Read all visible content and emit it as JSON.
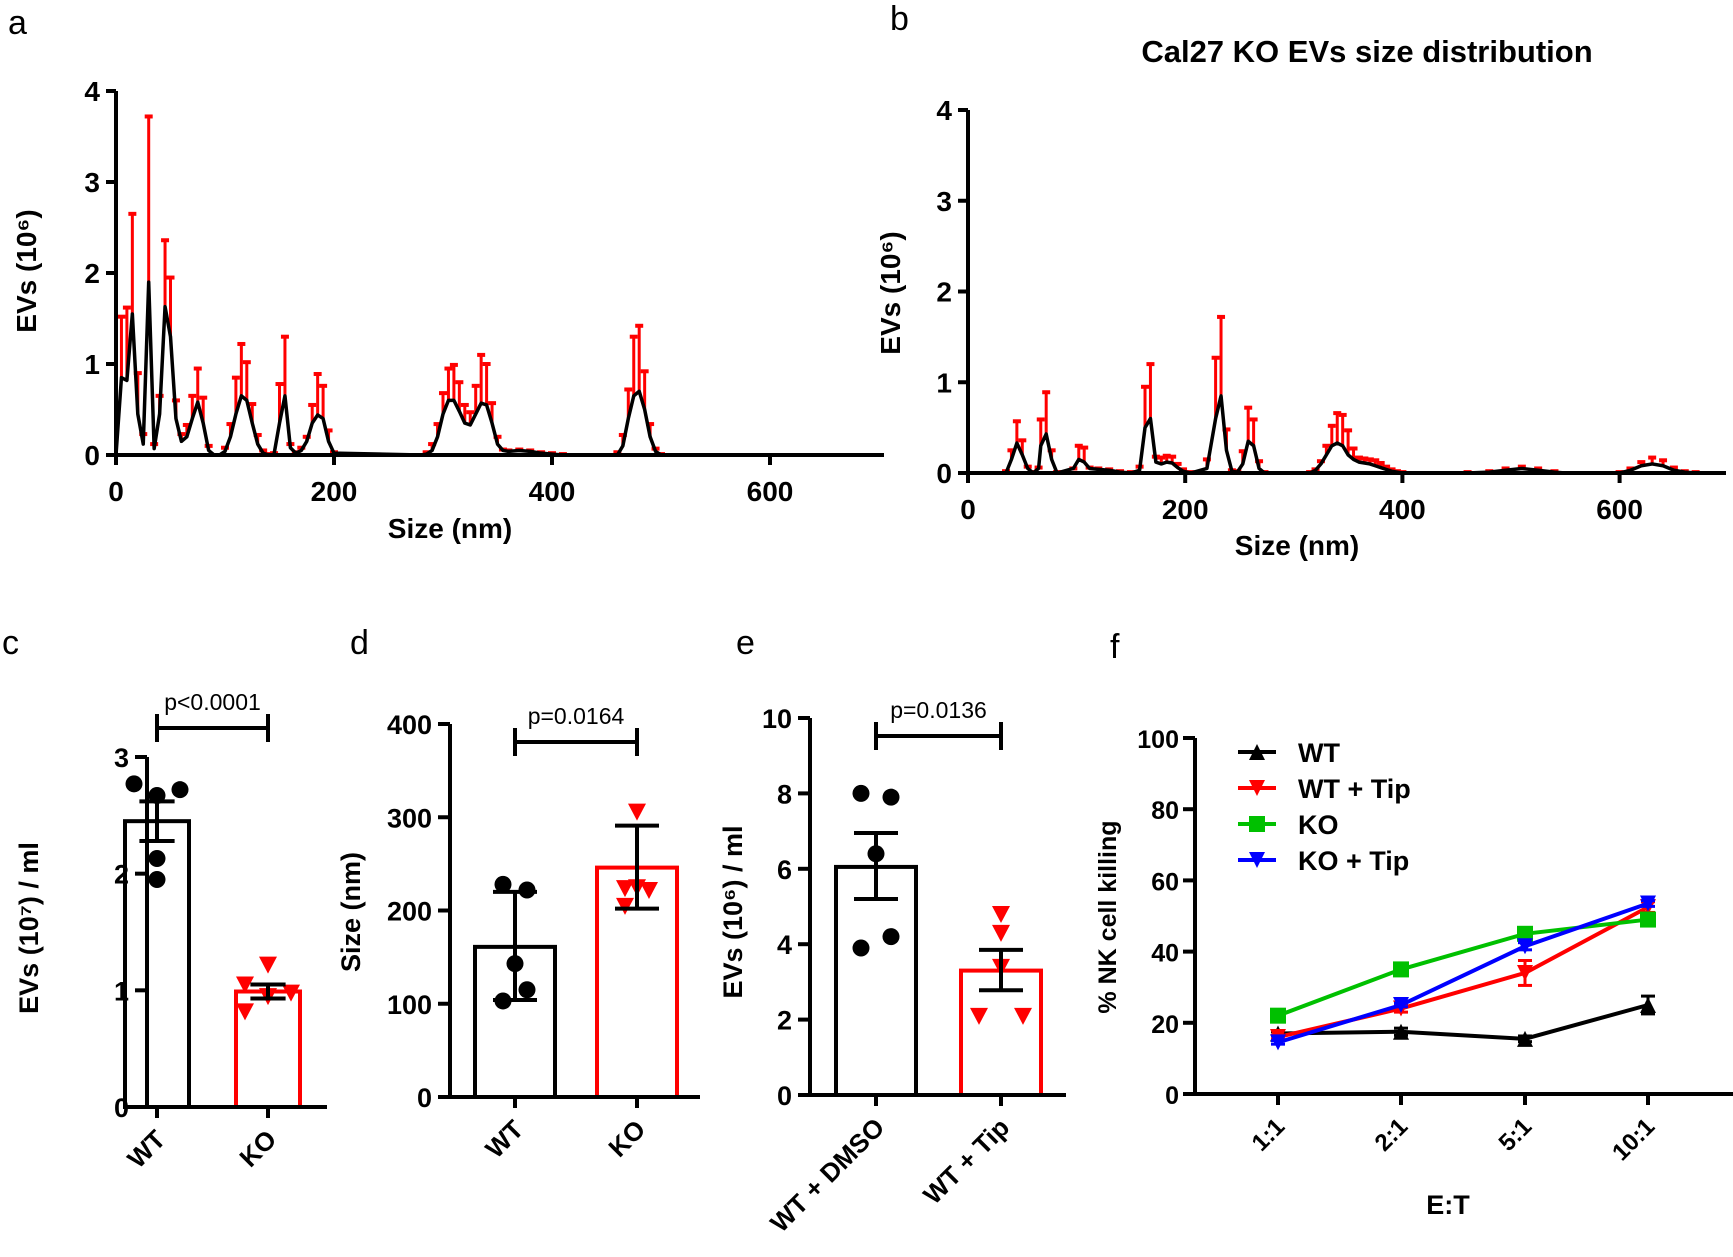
{
  "chart_data": [
    {
      "panel": "a",
      "type": "line",
      "title": "",
      "xlabel": "Size (nm)",
      "ylabel": "EVs (10⁶)",
      "xlim": [
        0,
        700
      ],
      "ylim": [
        0,
        4
      ],
      "xticks": [
        "0",
        "200",
        "400",
        "600"
      ],
      "yticks": [
        "0",
        "1",
        "2",
        "3",
        "4"
      ],
      "colors": {
        "line": "#000000",
        "error": "#ff0000"
      },
      "points_format": [
        "size_nm",
        "mean",
        "upper_error"
      ],
      "points": [
        [
          0,
          0,
          0
        ],
        [
          5,
          0.85,
          1.52
        ],
        [
          10,
          0.82,
          1.62
        ],
        [
          15,
          1.55,
          2.65
        ],
        [
          20,
          0.45,
          0.9
        ],
        [
          25,
          0.12,
          0.23
        ],
        [
          30,
          1.9,
          3.72
        ],
        [
          35,
          0.07,
          0.12
        ],
        [
          40,
          0.45,
          0.65
        ],
        [
          45,
          1.63,
          2.36
        ],
        [
          50,
          1.3,
          1.95
        ],
        [
          55,
          0.4,
          0.6
        ],
        [
          60,
          0.15,
          0.23
        ],
        [
          65,
          0.2,
          0.33
        ],
        [
          70,
          0.4,
          0.65
        ],
        [
          75,
          0.58,
          0.95
        ],
        [
          80,
          0.35,
          0.63
        ],
        [
          85,
          0.05,
          0.1
        ],
        [
          90,
          0,
          0
        ],
        [
          95,
          0,
          0
        ],
        [
          100,
          0.04,
          0.08
        ],
        [
          105,
          0.2,
          0.34
        ],
        [
          110,
          0.45,
          0.85
        ],
        [
          115,
          0.65,
          1.22
        ],
        [
          120,
          0.6,
          1.02
        ],
        [
          125,
          0.35,
          0.56
        ],
        [
          130,
          0.12,
          0.22
        ],
        [
          135,
          0.02,
          0.05
        ],
        [
          140,
          0,
          0.01
        ],
        [
          145,
          0.01,
          0.02
        ],
        [
          150,
          0.35,
          0.78
        ],
        [
          155,
          0.65,
          1.3
        ],
        [
          160,
          0.08,
          0.12
        ],
        [
          165,
          0.02,
          0.03
        ],
        [
          170,
          0.05,
          0.08
        ],
        [
          175,
          0.15,
          0.2
        ],
        [
          180,
          0.35,
          0.55
        ],
        [
          185,
          0.44,
          0.89
        ],
        [
          190,
          0.4,
          0.76
        ],
        [
          195,
          0.15,
          0.27
        ],
        [
          200,
          0.02,
          0.03
        ],
        [
          280,
          0,
          0
        ],
        [
          285,
          0.01,
          0.03
        ],
        [
          290,
          0.05,
          0.12
        ],
        [
          295,
          0.2,
          0.34
        ],
        [
          300,
          0.45,
          0.68
        ],
        [
          305,
          0.6,
          0.95
        ],
        [
          310,
          0.6,
          0.99
        ],
        [
          315,
          0.48,
          0.8
        ],
        [
          320,
          0.35,
          0.55
        ],
        [
          325,
          0.33,
          0.47
        ],
        [
          330,
          0.45,
          0.76
        ],
        [
          335,
          0.57,
          1.1
        ],
        [
          340,
          0.55,
          1.0
        ],
        [
          345,
          0.35,
          0.57
        ],
        [
          350,
          0.12,
          0.2
        ],
        [
          355,
          0.05,
          0.06
        ],
        [
          360,
          0.04,
          0.05
        ],
        [
          370,
          0.05,
          0.06
        ],
        [
          380,
          0.04,
          0.05
        ],
        [
          390,
          0.02,
          0.03
        ],
        [
          400,
          0.01,
          0.02
        ],
        [
          410,
          0,
          0.01
        ],
        [
          460,
          0,
          0.03
        ],
        [
          465,
          0.1,
          0.22
        ],
        [
          470,
          0.4,
          0.72
        ],
        [
          475,
          0.65,
          1.3
        ],
        [
          480,
          0.7,
          1.42
        ],
        [
          485,
          0.5,
          0.92
        ],
        [
          490,
          0.2,
          0.34
        ],
        [
          495,
          0.04,
          0.07
        ],
        [
          500,
          0,
          0.01
        ]
      ]
    },
    {
      "panel": "b",
      "type": "line",
      "title": "Cal27 KO EVs size distribution",
      "xlabel": "Size (nm)",
      "ylabel": "EVs (10⁶)",
      "xlim": [
        0,
        700
      ],
      "ylim": [
        0,
        4
      ],
      "xticks": [
        "0",
        "200",
        "400",
        "600"
      ],
      "yticks": [
        "0",
        "1",
        "2",
        "3",
        "4"
      ],
      "colors": {
        "line": "#000000",
        "error": "#ff0000"
      },
      "points_format": [
        "size_nm",
        "mean",
        "upper_error"
      ],
      "points": [
        [
          35,
          0,
          0.02
        ],
        [
          40,
          0.15,
          0.25
        ],
        [
          45,
          0.33,
          0.57
        ],
        [
          50,
          0.2,
          0.36
        ],
        [
          55,
          0.05,
          0.07
        ],
        [
          60,
          0,
          0.01
        ],
        [
          65,
          0.05,
          0.06
        ],
        [
          67,
          0.3,
          0.59
        ],
        [
          72,
          0.43,
          0.89
        ],
        [
          77,
          0.15,
          0.25
        ],
        [
          82,
          0,
          0.01
        ],
        [
          97,
          0.05,
          0.05
        ],
        [
          102,
          0.15,
          0.3
        ],
        [
          107,
          0.12,
          0.28
        ],
        [
          112,
          0.05,
          0.06
        ],
        [
          120,
          0.04,
          0.05
        ],
        [
          130,
          0.03,
          0.04
        ],
        [
          140,
          0.01,
          0.02
        ],
        [
          150,
          0,
          0.01
        ],
        [
          158,
          0.03,
          0.07
        ],
        [
          163,
          0.5,
          0.95
        ],
        [
          168,
          0.6,
          1.2
        ],
        [
          173,
          0.12,
          0.18
        ],
        [
          178,
          0.1,
          0.17
        ],
        [
          183,
          0.12,
          0.19
        ],
        [
          188,
          0.11,
          0.18
        ],
        [
          193,
          0.06,
          0.1
        ],
        [
          198,
          0.02,
          0.04
        ],
        [
          205,
          0,
          0.01
        ],
        [
          220,
          0.05,
          0.15
        ],
        [
          228,
          0.6,
          1.27
        ],
        [
          233,
          0.85,
          1.72
        ],
        [
          238,
          0.25,
          0.48
        ],
        [
          243,
          0.02,
          0.03
        ],
        [
          248,
          0.01,
          0.02
        ],
        [
          253,
          0.1,
          0.24
        ],
        [
          258,
          0.35,
          0.72
        ],
        [
          263,
          0.3,
          0.59
        ],
        [
          268,
          0.05,
          0.13
        ],
        [
          273,
          0,
          0.01
        ],
        [
          315,
          0,
          0.01
        ],
        [
          320,
          0.03,
          0.04
        ],
        [
          325,
          0.1,
          0.13
        ],
        [
          330,
          0.2,
          0.3
        ],
        [
          335,
          0.3,
          0.52
        ],
        [
          340,
          0.33,
          0.66
        ],
        [
          345,
          0.3,
          0.64
        ],
        [
          350,
          0.2,
          0.47
        ],
        [
          355,
          0.15,
          0.27
        ],
        [
          360,
          0.12,
          0.17
        ],
        [
          365,
          0.11,
          0.16
        ],
        [
          370,
          0.1,
          0.15
        ],
        [
          375,
          0.08,
          0.14
        ],
        [
          380,
          0.06,
          0.11
        ],
        [
          385,
          0.04,
          0.07
        ],
        [
          390,
          0.02,
          0.04
        ],
        [
          395,
          0.01,
          0.02
        ],
        [
          400,
          0,
          0.01
        ],
        [
          460,
          0,
          0.01
        ],
        [
          480,
          0.01,
          0.02
        ],
        [
          495,
          0.03,
          0.05
        ],
        [
          510,
          0.05,
          0.07
        ],
        [
          525,
          0.03,
          0.05
        ],
        [
          540,
          0.01,
          0.02
        ],
        [
          550,
          0,
          0
        ],
        [
          600,
          0,
          0.01
        ],
        [
          610,
          0.03,
          0.05
        ],
        [
          620,
          0.08,
          0.12
        ],
        [
          630,
          0.1,
          0.17
        ],
        [
          640,
          0.08,
          0.14
        ],
        [
          650,
          0.03,
          0.06
        ],
        [
          660,
          0.01,
          0.02
        ],
        [
          670,
          0,
          0.01
        ]
      ]
    },
    {
      "panel": "c",
      "type": "bar",
      "ylabel": "EVs (10⁷) / ml",
      "ylim": [
        0,
        3
      ],
      "yticks": [
        "0",
        "1",
        "2",
        "3"
      ],
      "categories": [
        "WT",
        "KO"
      ],
      "values": [
        2.45,
        0.99
      ],
      "error": [
        [
          2.28,
          2.62
        ],
        [
          0.93,
          1.05
        ]
      ],
      "points": [
        [
          2.77,
          2.67,
          2.72,
          2.13,
          1.95
        ],
        [
          1.22,
          1.05,
          0.98,
          0.95,
          0.82
        ]
      ],
      "colors": [
        "#000000",
        "#ff0000"
      ],
      "annotation": "p<0.0001"
    },
    {
      "panel": "d",
      "type": "bar",
      "ylabel": "Size (nm)",
      "ylim": [
        0,
        400
      ],
      "yticks": [
        "0",
        "100",
        "200",
        "300",
        "400"
      ],
      "categories": [
        "WT",
        "KO"
      ],
      "values": [
        161,
        246
      ],
      "error": [
        [
          104,
          220
        ],
        [
          202,
          291
        ]
      ],
      "points": [
        [
          228,
          222,
          143,
          115,
          103
        ],
        [
          306,
          225,
          224,
          205,
          222
        ]
      ],
      "colors": [
        "#000000",
        "#ff0000"
      ],
      "annotation": "p=0.0164"
    },
    {
      "panel": "e",
      "type": "bar",
      "ylabel": "EVs (10⁶) / ml",
      "ylim": [
        0,
        10
      ],
      "yticks": [
        "0",
        "2",
        "4",
        "6",
        "8",
        "10"
      ],
      "categories": [
        "WT + DMSO",
        "WT + Tip"
      ],
      "values": [
        6.05,
        3.3
      ],
      "error": [
        [
          5.2,
          6.95
        ],
        [
          2.78,
          3.85
        ]
      ],
      "points": [
        [
          8.0,
          7.9,
          6.4,
          4.2,
          3.9
        ],
        [
          4.8,
          4.3,
          3.4,
          2.1,
          2.1
        ]
      ],
      "colors": [
        "#000000",
        "#ff0000"
      ],
      "annotation": "p=0.0136"
    },
    {
      "panel": "f",
      "type": "line",
      "xlabel": "E:T",
      "ylabel": "% NK cell killing",
      "ylim": [
        0,
        100
      ],
      "yticks": [
        "0",
        "20",
        "40",
        "60",
        "80",
        "100"
      ],
      "categories": [
        "1:1",
        "2:1",
        "5:1",
        "10:1"
      ],
      "legend_position": "top-left",
      "series": [
        {
          "name": "WT",
          "color": "#000000",
          "marker": "triangle-up",
          "values": [
            17,
            17.5,
            15.5,
            25
          ],
          "error": [
            0.5,
            1,
            0.8,
            2.5
          ]
        },
        {
          "name": "WT + Tip",
          "color": "#ff0000",
          "marker": "triangle-down",
          "values": [
            16,
            24,
            34,
            52.5
          ],
          "error": [
            0.5,
            1,
            3.5,
            1.5
          ]
        },
        {
          "name": "KO",
          "color": "#00c000",
          "marker": "square",
          "values": [
            22,
            35,
            45,
            49
          ],
          "error": [
            0.5,
            0.5,
            0.8,
            1
          ]
        },
        {
          "name": "KO + Tip",
          "color": "#0000ff",
          "marker": "triangle-down",
          "values": [
            14.5,
            25,
            41.5,
            53.5
          ],
          "error": [
            0.5,
            0.5,
            1,
            0.8
          ]
        }
      ]
    }
  ],
  "panel_letters": [
    "a",
    "b",
    "c",
    "d",
    "e",
    "f"
  ]
}
